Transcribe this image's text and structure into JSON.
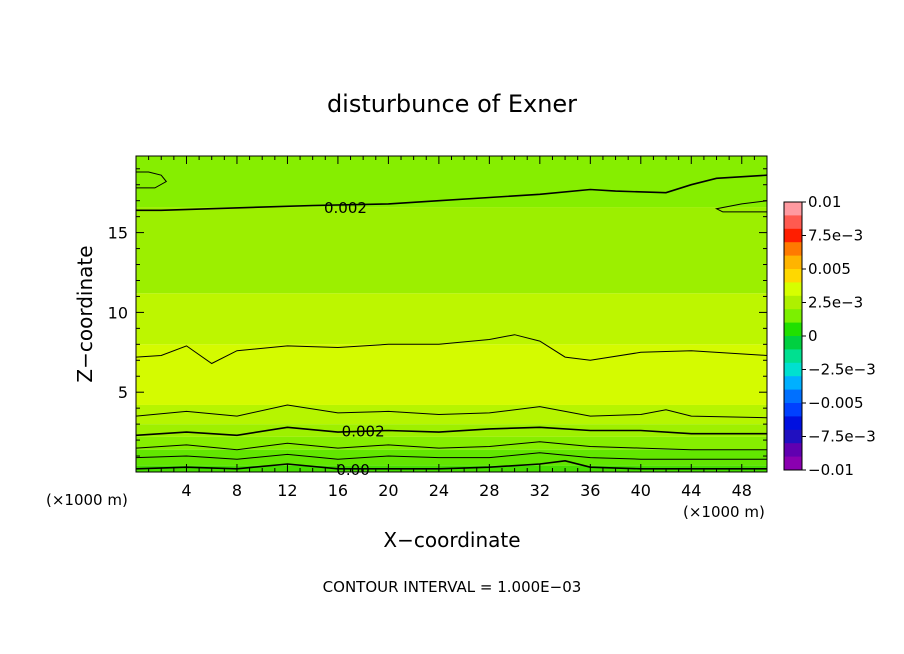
{
  "chart_data": {
    "type": "heatmap",
    "title": "disturbunce of Exner",
    "xlabel": "X−coordinate",
    "ylabel": "Z−coordinate",
    "x_unit_left": "(×1000 m)",
    "x_unit_right": "(×1000 m)",
    "footer": "CONTOUR INTERVAL = 1.000E−03",
    "xlim": [
      0,
      50
    ],
    "ylim": [
      0,
      19.8
    ],
    "x_ticks": [
      4,
      8,
      12,
      16,
      20,
      24,
      28,
      32,
      36,
      40,
      44,
      48
    ],
    "x_tick_labels": [
      "4",
      "8",
      "12",
      "16",
      "20",
      "24",
      "28",
      "32",
      "36",
      "40",
      "44",
      "48"
    ],
    "y_ticks": [
      5,
      10,
      15
    ],
    "y_tick_labels": [
      "5",
      "10",
      "15"
    ],
    "colorbar": {
      "min": -0.01,
      "max": 0.01,
      "tick_labels": [
        "0.01",
        "7.5e−3",
        "0.005",
        "2.5e−3",
        "0",
        "−2.5e−3",
        "−0.005",
        "−7.5e−3",
        "−0.01"
      ],
      "colors": [
        "#ff9aa0",
        "#ff5a50",
        "#ff1e00",
        "#ff7a00",
        "#ffb400",
        "#ffd800",
        "#d6ff00",
        "#aef000",
        "#7cf000",
        "#20e000",
        "#00d040",
        "#00e090",
        "#00e0d0",
        "#00b0ff",
        "#0070ff",
        "#0040ff",
        "#0010e0",
        "#2010c0",
        "#6000b0",
        "#8a00b0"
      ]
    },
    "bands": [
      {
        "z_from": 0.0,
        "z_to": 0.4,
        "color": "#45dd00"
      },
      {
        "z_from": 0.4,
        "z_to": 1.4,
        "color": "#62e600"
      },
      {
        "z_from": 1.4,
        "z_to": 2.2,
        "color": "#86ee00"
      },
      {
        "z_from": 2.2,
        "z_to": 3.0,
        "color": "#9ef000"
      },
      {
        "z_from": 3.0,
        "z_to": 4.2,
        "color": "#b6f500"
      },
      {
        "z_from": 4.2,
        "z_to": 8.0,
        "color": "#d4fb00"
      },
      {
        "z_from": 8.0,
        "z_to": 11.2,
        "color": "#bdf600"
      },
      {
        "z_from": 11.2,
        "z_to": 16.6,
        "color": "#9cef00"
      },
      {
        "z_from": 16.6,
        "z_to": 19.8,
        "color": "#86ee00"
      }
    ],
    "contours": [
      {
        "label": "0.002",
        "label_at": [
          16.6,
          16.6
        ],
        "x": [
          0,
          2,
          6,
          10,
          14,
          20,
          24,
          28,
          32,
          36,
          38,
          42,
          44,
          46,
          50
        ],
        "y": [
          16.4,
          16.4,
          16.5,
          16.6,
          16.7,
          16.8,
          17.0,
          17.2,
          17.4,
          17.7,
          17.6,
          17.5,
          18.0,
          18.4,
          18.6
        ]
      },
      {
        "label": "",
        "x": [
          0,
          2,
          4,
          6,
          8,
          12,
          16,
          20,
          24,
          28,
          30,
          32,
          34,
          36,
          40,
          44,
          50
        ],
        "y": [
          7.2,
          7.3,
          7.9,
          6.8,
          7.6,
          7.9,
          7.8,
          8.0,
          8.0,
          8.3,
          8.6,
          8.2,
          7.2,
          7.0,
          7.5,
          7.6,
          7.3
        ]
      },
      {
        "label": "",
        "x": [
          0,
          4,
          8,
          12,
          16,
          20,
          24,
          28,
          32,
          34,
          36,
          40,
          42,
          44,
          50
        ],
        "y": [
          3.5,
          3.8,
          3.5,
          4.2,
          3.7,
          3.8,
          3.6,
          3.7,
          4.1,
          3.8,
          3.5,
          3.6,
          3.9,
          3.5,
          3.4
        ]
      },
      {
        "label": "0.002",
        "label_at": [
          18.0,
          2.6
        ],
        "x": [
          0,
          4,
          8,
          12,
          16,
          20,
          24,
          28,
          32,
          36,
          40,
          44,
          50
        ],
        "y": [
          2.3,
          2.5,
          2.3,
          2.8,
          2.5,
          2.6,
          2.5,
          2.7,
          2.8,
          2.6,
          2.6,
          2.4,
          2.4
        ]
      },
      {
        "label": "",
        "x": [
          0,
          4,
          8,
          12,
          16,
          20,
          24,
          28,
          32,
          36,
          40,
          44,
          50
        ],
        "y": [
          1.5,
          1.7,
          1.4,
          1.8,
          1.5,
          1.7,
          1.5,
          1.6,
          1.9,
          1.6,
          1.5,
          1.4,
          1.4
        ]
      },
      {
        "label": "",
        "x": [
          0,
          4,
          8,
          12,
          16,
          20,
          24,
          28,
          32,
          36,
          40,
          44,
          50
        ],
        "y": [
          0.9,
          1.0,
          0.8,
          1.1,
          0.8,
          1.0,
          0.9,
          0.9,
          1.2,
          0.9,
          0.8,
          0.8,
          0.8
        ]
      },
      {
        "label": "0.00",
        "label_at": [
          17.2,
          0.2
        ],
        "x": [
          0,
          4,
          8,
          12,
          16,
          20,
          24,
          28,
          32,
          34,
          36,
          40,
          44,
          50
        ],
        "y": [
          0.2,
          0.3,
          0.2,
          0.5,
          0.2,
          0.2,
          0.2,
          0.3,
          0.5,
          0.7,
          0.3,
          0.2,
          0.2,
          0.2
        ]
      },
      {
        "label": "",
        "x": [
          0,
          1,
          2,
          2.4,
          1.5,
          0.5,
          0
        ],
        "y": [
          18.8,
          18.8,
          18.6,
          18.2,
          17.8,
          17.8,
          17.8
        ]
      },
      {
        "label": "",
        "x": [
          50,
          48,
          46,
          46.5,
          48,
          50
        ],
        "y": [
          17.0,
          16.8,
          16.5,
          16.3,
          16.3,
          16.3
        ]
      }
    ]
  }
}
